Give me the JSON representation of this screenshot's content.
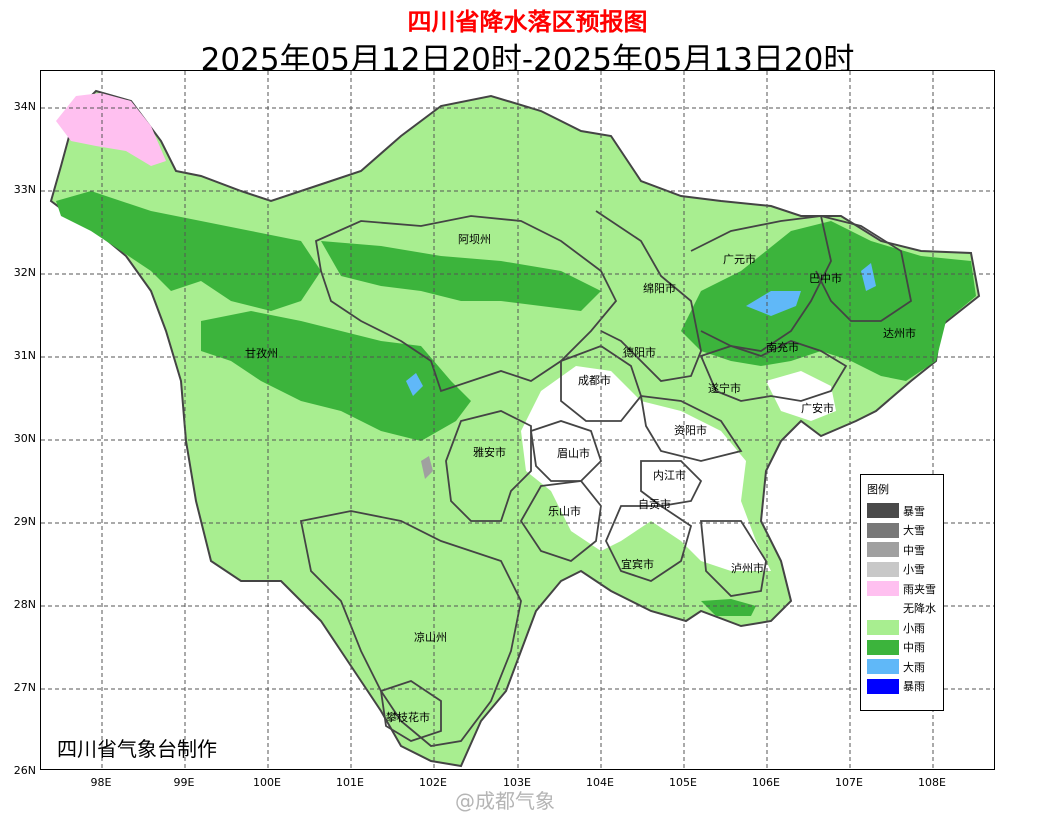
{
  "title": "四川省降水落区预报图",
  "subtitle": "2025年05月12日20时-2025年05月13日20时",
  "credit": "四川省气象台制作",
  "watermark": "@成都气象",
  "lat_labels": [
    "34N",
    "33N",
    "32N",
    "31N",
    "30N",
    "29N",
    "28N",
    "27N",
    "26N"
  ],
  "lon_labels": [
    "98E",
    "99E",
    "100E",
    "101E",
    "102E",
    "103E",
    "104E",
    "105E",
    "106E",
    "107E",
    "108E"
  ],
  "legend": {
    "title": "图例",
    "items": [
      {
        "label": "暴雪",
        "color": "#4a4a4a"
      },
      {
        "label": "大雪",
        "color": "#787878"
      },
      {
        "label": "中雪",
        "color": "#a0a0a0"
      },
      {
        "label": "小雪",
        "color": "#c8c8c8"
      },
      {
        "label": "雨夹雪",
        "color": "#ffc0f0"
      },
      {
        "label": "无降水",
        "color": "#ffffff"
      },
      {
        "label": "小雨",
        "color": "#a8ee90"
      },
      {
        "label": "中雨",
        "color": "#3cb43c"
      },
      {
        "label": "大雨",
        "color": "#60b8f8"
      },
      {
        "label": "暴雨",
        "color": "#0000ff"
      }
    ]
  },
  "cities": [
    {
      "name": "阿坝州"
    },
    {
      "name": "广元市"
    },
    {
      "name": "巴中市"
    },
    {
      "name": "绵阳市"
    },
    {
      "name": "达州市"
    },
    {
      "name": "甘孜州"
    },
    {
      "name": "德阳市"
    },
    {
      "name": "南充市"
    },
    {
      "name": "成都市"
    },
    {
      "name": "遂宁市"
    },
    {
      "name": "广安市"
    },
    {
      "name": "资阳市"
    },
    {
      "name": "雅安市"
    },
    {
      "name": "眉山市"
    },
    {
      "name": "内江市"
    },
    {
      "name": "自贡市"
    },
    {
      "name": "乐山市"
    },
    {
      "name": "宜宾市"
    },
    {
      "name": "泸州市"
    },
    {
      "name": "凉山州"
    },
    {
      "name": "攀枝花市"
    }
  ]
}
